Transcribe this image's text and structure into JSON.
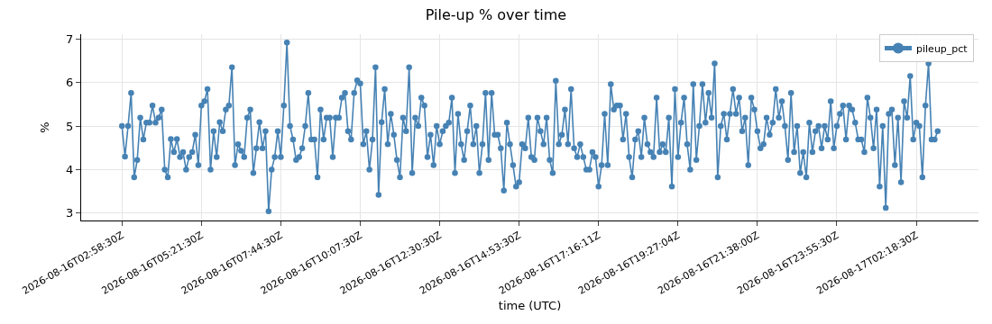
{
  "chart_data": {
    "type": "line",
    "title": "Pile-up % over time",
    "xlabel": "time (UTC)",
    "ylabel": "%",
    "categories": [
      "2026-08-16T02:58:30Z",
      null,
      null,
      null,
      null,
      null,
      null,
      null,
      null,
      null,
      null,
      null,
      null,
      null,
      null,
      null,
      null,
      null,
      null,
      null,
      null,
      null,
      null,
      null,
      null,
      null,
      "2026-08-16T05:21:30Z",
      null,
      null,
      null,
      null,
      null,
      null,
      null,
      null,
      null,
      null,
      null,
      null,
      null,
      null,
      null,
      null,
      null,
      null,
      null,
      null,
      null,
      null,
      null,
      null,
      null,
      "2026-08-16T07:44:30Z",
      null,
      null,
      null,
      null,
      null,
      null,
      null,
      null,
      null,
      null,
      null,
      null,
      null,
      null,
      null,
      null,
      null,
      null,
      null,
      null,
      null,
      null,
      null,
      null,
      null,
      "2026-08-16T10:07:30Z",
      null,
      null,
      null,
      null,
      null,
      null,
      null,
      null,
      null,
      null,
      null,
      null,
      null,
      null,
      null,
      null,
      null,
      null,
      null,
      null,
      null,
      null,
      null,
      null,
      null,
      "2026-08-16T12:30:30Z",
      null,
      null,
      null,
      null,
      null,
      null,
      null,
      null,
      null,
      null,
      null,
      null,
      null,
      null,
      null,
      null,
      null,
      null,
      null,
      null,
      null,
      null,
      null,
      null,
      null,
      "2026-08-16T14:53:30Z",
      null,
      null,
      null,
      null,
      null,
      null,
      null,
      null,
      null,
      null,
      null,
      null,
      null,
      null,
      null,
      null,
      null,
      null,
      null,
      null,
      null,
      null,
      null,
      null,
      null,
      "2026-08-16T17:16:11Z",
      null,
      null,
      null,
      null,
      null,
      null,
      null,
      null,
      null,
      null,
      null,
      null,
      null,
      null,
      null,
      null,
      null,
      null,
      null,
      null,
      null,
      null,
      null,
      null,
      null,
      "2026-08-16T19:27:04Z",
      null,
      null,
      null,
      null,
      null,
      null,
      null,
      null,
      null,
      null,
      null,
      null,
      null,
      null,
      null,
      null,
      null,
      null,
      null,
      null,
      null,
      null,
      null,
      null,
      null,
      "2026-08-16T21:38:00Z",
      null,
      null,
      null,
      null,
      null,
      null,
      null,
      null,
      null,
      null,
      null,
      null,
      null,
      null,
      null,
      null,
      null,
      null,
      null,
      null,
      null,
      null,
      null,
      null,
      null,
      "2026-08-16T23:55:30Z",
      null,
      null,
      null,
      null,
      null,
      null,
      null,
      null,
      null,
      null,
      null,
      null,
      null,
      null,
      null,
      null,
      null,
      null,
      null,
      null,
      null,
      null,
      null,
      null,
      null,
      "2026-08-17T02:18:30Z",
      null,
      null,
      null,
      null,
      null,
      null,
      null
    ],
    "series": [
      {
        "name": "pileup_pct",
        "color": "#4682b4",
        "values": [
          5.0,
          4.3,
          5.0,
          5.76,
          3.82,
          4.22,
          5.19,
          4.69,
          5.08,
          5.08,
          5.47,
          5.08,
          5.19,
          5.38,
          4.0,
          3.82,
          4.7,
          4.4,
          4.7,
          4.29,
          4.4,
          4.0,
          4.29,
          4.4,
          4.8,
          4.1,
          5.47,
          5.57,
          5.85,
          4.0,
          4.88,
          4.29,
          5.09,
          4.88,
          5.38,
          5.47,
          6.35,
          4.1,
          4.58,
          4.43,
          4.29,
          5.19,
          5.38,
          3.92,
          4.49,
          5.09,
          4.49,
          4.88,
          3.04,
          4.0,
          4.29,
          4.88,
          4.29,
          5.47,
          6.92,
          5.0,
          4.69,
          4.22,
          4.29,
          4.49,
          5.0,
          5.76,
          4.69,
          4.69,
          3.82,
          5.38,
          4.69,
          5.19,
          5.19,
          4.29,
          5.19,
          5.19,
          5.65,
          5.76,
          4.88,
          4.69,
          5.76,
          6.05,
          5.98,
          4.58,
          4.88,
          4.0,
          4.69,
          6.35,
          3.42,
          5.09,
          5.85,
          4.58,
          5.28,
          4.8,
          4.22,
          3.82,
          5.19,
          4.88,
          6.35,
          3.92,
          5.19,
          5.0,
          5.65,
          5.47,
          4.29,
          4.8,
          4.1,
          5.0,
          4.58,
          4.88,
          5.0,
          5.08,
          5.65,
          3.92,
          5.28,
          4.58,
          4.22,
          4.88,
          5.47,
          4.58,
          5.0,
          3.92,
          4.58,
          5.76,
          4.22,
          5.76,
          4.8,
          4.8,
          4.49,
          3.52,
          5.08,
          4.58,
          4.1,
          3.61,
          3.71,
          4.58,
          4.49,
          5.19,
          4.29,
          4.22,
          5.19,
          4.88,
          4.58,
          5.19,
          4.22,
          3.92,
          6.04,
          4.58,
          4.8,
          5.38,
          4.58,
          5.85,
          4.49,
          4.29,
          4.58,
          4.29,
          4.0,
          4.0,
          4.4,
          4.29,
          3.61,
          4.1,
          5.28,
          4.1,
          5.96,
          5.38,
          5.47,
          5.47,
          4.69,
          5.28,
          4.29,
          3.82,
          4.69,
          4.88,
          4.29,
          5.19,
          4.58,
          4.4,
          4.29,
          5.65,
          4.4,
          4.58,
          4.4,
          5.19,
          3.61,
          5.85,
          4.29,
          5.08,
          5.65,
          4.58,
          4.0,
          5.96,
          4.22,
          5.0,
          5.96,
          5.08,
          5.76,
          5.19,
          6.44,
          3.82,
          5.0,
          5.28,
          4.69,
          5.28,
          5.85,
          5.28,
          5.65,
          4.88,
          5.19,
          4.1,
          5.65,
          5.38,
          4.88,
          4.49,
          4.58,
          5.19,
          4.8,
          5.08,
          5.85,
          5.19,
          5.57,
          5.0,
          4.22,
          5.76,
          4.4,
          5.0,
          3.92,
          4.4,
          3.82,
          5.08,
          4.4,
          4.88,
          5.0,
          4.49,
          5.0,
          4.69,
          5.57,
          4.49,
          5.0,
          5.28,
          5.47,
          4.69,
          5.47,
          5.38,
          5.08,
          4.69,
          4.69,
          4.4,
          5.65,
          5.19,
          4.49,
          5.38,
          3.61,
          5.0,
          3.12,
          5.28,
          5.38,
          4.1,
          5.19,
          3.71,
          5.57,
          5.19,
          6.15,
          4.69,
          5.08,
          5.0,
          3.82,
          5.47,
          6.44,
          4.69,
          4.69,
          4.88
        ]
      }
    ],
    "ylim": [
      2.83,
      7.11
    ],
    "yticks": [
      3,
      4,
      5,
      6,
      7
    ],
    "grid": true,
    "legend": "top right",
    "marker": "circle",
    "line_style": "solid"
  }
}
